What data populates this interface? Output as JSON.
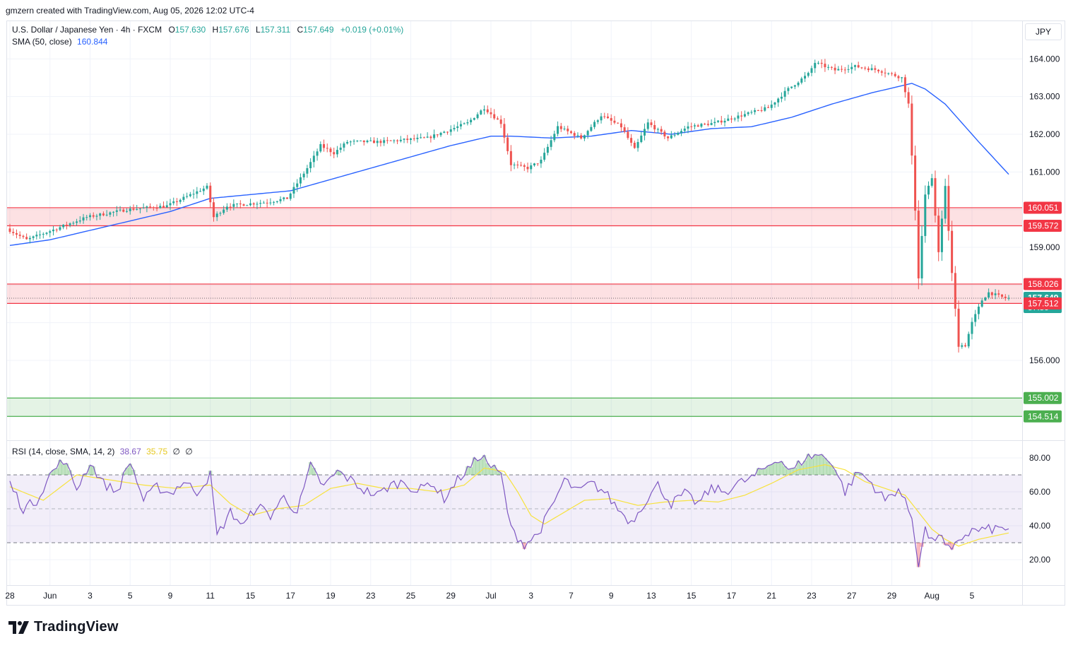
{
  "header": {
    "credit": "gmzern created with TradingView.com, Aug 05, 2026 12:02 UTC-4"
  },
  "legend": {
    "title": "U.S. Dollar / Japanese Yen · 4h · FXCM",
    "o_label": "O",
    "o_value": "157.630",
    "h_label": "H",
    "h_value": "157.676",
    "l_label": "L",
    "l_value": "157.311",
    "c_label": "C",
    "c_value": "157.649",
    "change": "+0.019 (+0.01%)",
    "sma_label": "SMA (50, close)",
    "sma_value": "160.844"
  },
  "rsi_legend": {
    "label": "RSI (14, close, SMA, 14, 2)",
    "rsi": "38.67",
    "ma": "35.75",
    "extra1": "∅",
    "extra2": "∅"
  },
  "currency_button": "JPY",
  "branding": "TradingView",
  "colors": {
    "up": "#26a69a",
    "down": "#ef5350",
    "sma": "#2962ff",
    "rsi": "#7e57c2",
    "rsi_ma": "#f7e23d",
    "zone_red": "#f23645",
    "zone_green": "#4caf50"
  },
  "chart_data": [
    {
      "type": "candlestick",
      "ylim": [
        153.9,
        165.0
      ],
      "y_ticks": [
        "156.000",
        "159.000",
        "161.000",
        "162.000",
        "163.000",
        "164.000"
      ],
      "x_labels": [
        "28",
        "Jun",
        "3",
        "5",
        "9",
        "11",
        "15",
        "17",
        "19",
        "23",
        "25",
        "29",
        "Jul",
        "3",
        "7",
        "9",
        "13",
        "15",
        "17",
        "21",
        "23",
        "27",
        "29",
        "Aug",
        "5"
      ],
      "x_label_pos": [
        0,
        12,
        24,
        36,
        48,
        60,
        72,
        84,
        96,
        108,
        120,
        132,
        144,
        156,
        168,
        180,
        192,
        204,
        216,
        228,
        240,
        252,
        264,
        276,
        288
      ],
      "n_bars": 300,
      "anchors": [
        [
          0,
          159.5
        ],
        [
          6,
          159.2
        ],
        [
          12,
          159.4
        ],
        [
          24,
          159.8
        ],
        [
          36,
          160.0
        ],
        [
          48,
          160.1
        ],
        [
          60,
          160.6
        ],
        [
          62,
          159.8
        ],
        [
          66,
          160.1
        ],
        [
          78,
          160.2
        ],
        [
          84,
          160.3
        ],
        [
          90,
          161.1
        ],
        [
          94,
          161.7
        ],
        [
          98,
          161.5
        ],
        [
          102,
          161.8
        ],
        [
          112,
          161.8
        ],
        [
          126,
          161.9
        ],
        [
          138,
          162.3
        ],
        [
          143,
          162.7
        ],
        [
          148,
          162.3
        ],
        [
          151,
          161.2
        ],
        [
          156,
          161.1
        ],
        [
          160,
          161.3
        ],
        [
          165,
          162.2
        ],
        [
          172,
          161.9
        ],
        [
          178,
          162.5
        ],
        [
          184,
          162.2
        ],
        [
          188,
          161.6
        ],
        [
          192,
          162.3
        ],
        [
          198,
          161.9
        ],
        [
          204,
          162.2
        ],
        [
          212,
          162.3
        ],
        [
          220,
          162.5
        ],
        [
          228,
          162.7
        ],
        [
          234,
          163.2
        ],
        [
          240,
          163.6
        ],
        [
          242,
          163.9
        ],
        [
          248,
          163.7
        ],
        [
          254,
          163.8
        ],
        [
          261,
          163.7
        ],
        [
          268,
          163.5
        ],
        [
          270,
          162.8
        ],
        [
          272,
          160.0
        ],
        [
          273,
          158.2
        ],
        [
          275,
          160.4
        ],
        [
          277,
          160.8
        ],
        [
          279,
          158.9
        ],
        [
          281,
          160.6
        ],
        [
          283,
          158.3
        ],
        [
          285,
          156.4
        ],
        [
          287,
          156.4
        ],
        [
          289,
          157.0
        ],
        [
          292,
          157.6
        ],
        [
          294,
          157.8
        ],
        [
          299,
          157.65
        ]
      ],
      "sma_anchors": [
        [
          0,
          159.05
        ],
        [
          12,
          159.2
        ],
        [
          24,
          159.45
        ],
        [
          36,
          159.7
        ],
        [
          48,
          159.95
        ],
        [
          60,
          160.3
        ],
        [
          72,
          160.4
        ],
        [
          84,
          160.5
        ],
        [
          96,
          160.8
        ],
        [
          108,
          161.1
        ],
        [
          120,
          161.4
        ],
        [
          132,
          161.7
        ],
        [
          144,
          161.95
        ],
        [
          150,
          161.95
        ],
        [
          162,
          161.9
        ],
        [
          174,
          161.95
        ],
        [
          186,
          162.1
        ],
        [
          198,
          162.0
        ],
        [
          210,
          162.15
        ],
        [
          222,
          162.2
        ],
        [
          234,
          162.45
        ],
        [
          246,
          162.8
        ],
        [
          258,
          163.1
        ],
        [
          270,
          163.35
        ],
        [
          274,
          163.2
        ],
        [
          280,
          162.8
        ],
        [
          290,
          161.8
        ],
        [
          300,
          160.84
        ]
      ],
      "zones": [
        {
          "color": "red",
          "top": 160.051,
          "bottom": 159.572
        },
        {
          "color": "red",
          "top": 158.026,
          "bottom": 157.512
        },
        {
          "color": "green",
          "top": 155.002,
          "bottom": 154.514
        }
      ],
      "price_tags": [
        {
          "value": 164.0,
          "text": "164.000",
          "kind": "plain"
        },
        {
          "value": 163.0,
          "text": "163.000",
          "kind": "plain"
        },
        {
          "value": 162.0,
          "text": "162.000",
          "kind": "plain"
        },
        {
          "value": 161.0,
          "text": "161.000",
          "kind": "plain"
        },
        {
          "value": 160.051,
          "text": "160.051",
          "kind": "red"
        },
        {
          "value": 159.572,
          "text": "159.572",
          "kind": "red"
        },
        {
          "value": 159.0,
          "text": "159.000",
          "kind": "plain"
        },
        {
          "value": 158.026,
          "text": "158.026",
          "kind": "red"
        },
        {
          "value": 157.649,
          "text": "157.649",
          "kind": "current",
          "sub": "57:59"
        },
        {
          "value": 157.512,
          "text": "157.512",
          "kind": "red"
        },
        {
          "value": 156.0,
          "text": "156.000",
          "kind": "plain"
        },
        {
          "value": 155.002,
          "text": "155.002",
          "kind": "green"
        },
        {
          "value": 154.514,
          "text": "154.514",
          "kind": "green"
        }
      ],
      "current_price": 157.649
    },
    {
      "type": "line",
      "name": "RSI",
      "ylim": [
        5,
        90
      ],
      "y_ticks": [
        20,
        40,
        60,
        80
      ],
      "band": [
        30,
        70
      ],
      "mid": 50,
      "rsi_anchors": [
        [
          0,
          65
        ],
        [
          4,
          50
        ],
        [
          8,
          55
        ],
        [
          12,
          70
        ],
        [
          16,
          79
        ],
        [
          20,
          62
        ],
        [
          24,
          77
        ],
        [
          28,
          65
        ],
        [
          32,
          60
        ],
        [
          36,
          78
        ],
        [
          40,
          55
        ],
        [
          44,
          63
        ],
        [
          48,
          59
        ],
        [
          52,
          66
        ],
        [
          56,
          60
        ],
        [
          60,
          70
        ],
        [
          62,
          34
        ],
        [
          66,
          48
        ],
        [
          70,
          40
        ],
        [
          74,
          52
        ],
        [
          78,
          46
        ],
        [
          82,
          57
        ],
        [
          86,
          48
        ],
        [
          90,
          75
        ],
        [
          94,
          63
        ],
        [
          98,
          72
        ],
        [
          102,
          67
        ],
        [
          106,
          61
        ],
        [
          110,
          58
        ],
        [
          114,
          64
        ],
        [
          118,
          66
        ],
        [
          122,
          60
        ],
        [
          126,
          66
        ],
        [
          130,
          56
        ],
        [
          134,
          67
        ],
        [
          138,
          75
        ],
        [
          141,
          82
        ],
        [
          144,
          75
        ],
        [
          147,
          70
        ],
        [
          150,
          38
        ],
        [
          154,
          29
        ],
        [
          158,
          35
        ],
        [
          162,
          50
        ],
        [
          166,
          67
        ],
        [
          170,
          60
        ],
        [
          174,
          65
        ],
        [
          178,
          60
        ],
        [
          182,
          50
        ],
        [
          186,
          42
        ],
        [
          190,
          54
        ],
        [
          194,
          64
        ],
        [
          198,
          53
        ],
        [
          202,
          59
        ],
        [
          206,
          53
        ],
        [
          210,
          62
        ],
        [
          214,
          60
        ],
        [
          218,
          65
        ],
        [
          222,
          68
        ],
        [
          226,
          74
        ],
        [
          230,
          80
        ],
        [
          234,
          72
        ],
        [
          238,
          80
        ],
        [
          242,
          82
        ],
        [
          246,
          78
        ],
        [
          250,
          60
        ],
        [
          254,
          72
        ],
        [
          258,
          65
        ],
        [
          262,
          55
        ],
        [
          266,
          62
        ],
        [
          270,
          45
        ],
        [
          272,
          18
        ],
        [
          274,
          38
        ],
        [
          276,
          30
        ],
        [
          278,
          36
        ],
        [
          280,
          28
        ],
        [
          282,
          24
        ],
        [
          284,
          32
        ],
        [
          288,
          37
        ],
        [
          294,
          38
        ],
        [
          299,
          38.67
        ]
      ],
      "ma_anchors": [
        [
          0,
          63
        ],
        [
          10,
          55
        ],
        [
          20,
          70
        ],
        [
          30,
          67
        ],
        [
          40,
          64
        ],
        [
          50,
          62
        ],
        [
          60,
          64
        ],
        [
          66,
          53
        ],
        [
          72,
          46
        ],
        [
          80,
          50
        ],
        [
          88,
          52
        ],
        [
          96,
          62
        ],
        [
          104,
          65
        ],
        [
          112,
          62
        ],
        [
          120,
          62
        ],
        [
          128,
          60
        ],
        [
          136,
          64
        ],
        [
          142,
          74
        ],
        [
          148,
          72
        ],
        [
          152,
          60
        ],
        [
          156,
          46
        ],
        [
          160,
          41
        ],
        [
          166,
          48
        ],
        [
          172,
          55
        ],
        [
          180,
          56
        ],
        [
          188,
          52
        ],
        [
          196,
          54
        ],
        [
          204,
          55
        ],
        [
          212,
          54
        ],
        [
          220,
          58
        ],
        [
          228,
          65
        ],
        [
          236,
          73
        ],
        [
          244,
          76
        ],
        [
          250,
          73
        ],
        [
          256,
          66
        ],
        [
          262,
          62
        ],
        [
          268,
          58
        ],
        [
          272,
          48
        ],
        [
          276,
          38
        ],
        [
          280,
          32
        ],
        [
          284,
          28
        ],
        [
          290,
          32
        ],
        [
          299,
          35.75
        ]
      ]
    }
  ]
}
